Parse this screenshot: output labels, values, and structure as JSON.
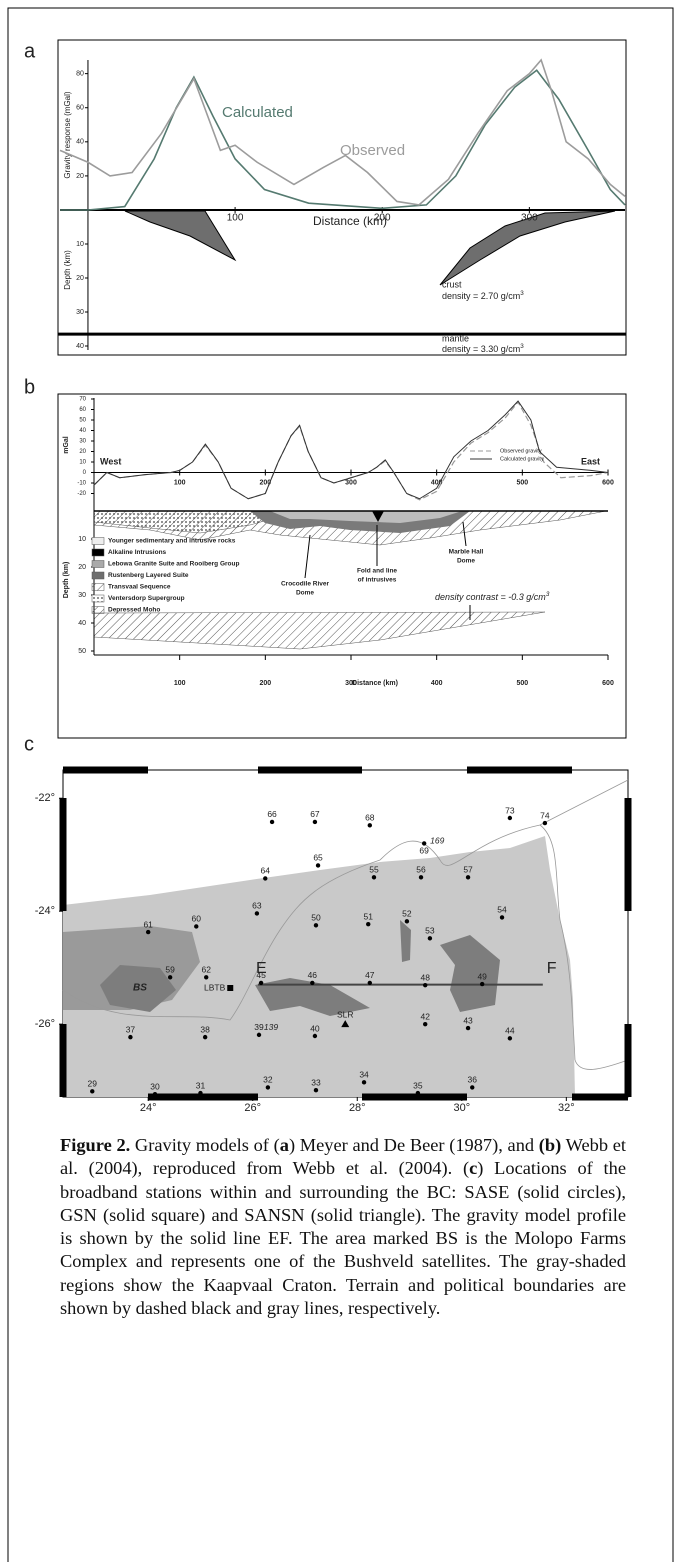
{
  "panel_a": {
    "label": "a",
    "y_label": "Gravity response (mGal)",
    "depth_label": "Depth (km)",
    "x_label": "Distance (km)",
    "xlim": [
      -19,
      365
    ],
    "ylim": [
      0,
      88
    ],
    "depth_lim": [
      0,
      40
    ],
    "xticks": [
      100,
      200,
      300
    ],
    "yticks": [
      20,
      40,
      60,
      80
    ],
    "depth_ticks": [
      10,
      20,
      30,
      40
    ],
    "series": [
      {
        "name": "Calculated",
        "color": "#557a70",
        "x": [
          -19,
          0,
          25,
          45,
          60,
          72,
          85,
          100,
          120,
          150,
          200,
          230,
          250,
          270,
          290,
          305,
          320,
          340,
          355,
          365
        ],
        "values": [
          0,
          0,
          2,
          30,
          60,
          78,
          55,
          30,
          12,
          4,
          1,
          3,
          20,
          50,
          72,
          82,
          65,
          35,
          12,
          3
        ]
      },
      {
        "name": "Observed",
        "color": "#9c9c9c",
        "x": [
          -19,
          0,
          15,
          30,
          50,
          72,
          90,
          100,
          115,
          140,
          160,
          175,
          190,
          210,
          225,
          245,
          265,
          285,
          300,
          308,
          315,
          325,
          340,
          355,
          365
        ],
        "values": [
          35,
          28,
          20,
          22,
          45,
          77,
          35,
          38,
          28,
          15,
          25,
          32,
          22,
          5,
          3,
          18,
          45,
          70,
          80,
          88,
          70,
          40,
          30,
          15,
          8
        ]
      }
    ],
    "moho_depth": 36.5,
    "crust_label": "crust",
    "crust_density": {
      "text": "density = 2.70 g/cm",
      "sup": "3"
    },
    "mantle_label": "mantle",
    "mantle_density": {
      "text": "density = 3.30 g/cm",
      "sup": "3"
    }
  },
  "panel_b": {
    "label": "b",
    "y_label": "mGal",
    "depth_label": "Depth (km)",
    "x_label": "Distance (km)",
    "west": "West",
    "east": "East",
    "xlim": [
      0,
      600
    ],
    "ylim": [
      -30,
      70
    ],
    "depth_lim": [
      0,
      50
    ],
    "xticks": [
      100,
      200,
      300,
      400,
      500,
      600
    ],
    "yticks": [
      -20,
      -10,
      0,
      10,
      20,
      30,
      40,
      50,
      60,
      70
    ],
    "depth_ticks": [
      10,
      20,
      30,
      40,
      50
    ],
    "series": [
      {
        "name": "Observed gravity",
        "color": "#999999",
        "dashed": true,
        "x": [
          0,
          15,
          30,
          60,
          90,
          100,
          115,
          130,
          145,
          160,
          180,
          200,
          215,
          230,
          240,
          250,
          265,
          280,
          300,
          320,
          330,
          340,
          350,
          365,
          380,
          400,
          420,
          440,
          460,
          480,
          495,
          510,
          525,
          545,
          580,
          600
        ],
        "values": [
          -12,
          0,
          -5,
          -2,
          0,
          2,
          10,
          26,
          10,
          -15,
          -25,
          -20,
          10,
          35,
          44,
          20,
          -5,
          -10,
          -5,
          0,
          5,
          11,
          0,
          -20,
          -26,
          -18,
          10,
          28,
          38,
          52,
          67,
          45,
          10,
          -5,
          -3,
          0
        ]
      },
      {
        "name": "Calculated gravity",
        "color": "#333333",
        "dashed": false,
        "x": [
          0,
          15,
          30,
          60,
          90,
          100,
          115,
          130,
          145,
          160,
          180,
          200,
          215,
          230,
          240,
          250,
          265,
          280,
          300,
          320,
          330,
          340,
          350,
          365,
          380,
          400,
          420,
          440,
          460,
          480,
          495,
          510,
          520,
          540,
          580,
          600
        ],
        "values": [
          -12,
          0,
          -5,
          -2,
          0,
          2,
          10,
          27,
          10,
          -15,
          -25,
          -20,
          10,
          35,
          45,
          20,
          -5,
          -10,
          -5,
          0,
          5,
          12,
          0,
          -20,
          -25,
          -15,
          15,
          30,
          40,
          55,
          68,
          50,
          20,
          5,
          2,
          0
        ]
      }
    ],
    "units": [
      "Younger sedimentary and intrusive rocks",
      "Alkaline Intrusions",
      "Lebowa Granite Suite and Rooiberg Group",
      "Rustenberg Layered Suite",
      "Transvaal Sequence",
      "Ventersdorp Supergroup",
      "Depressed Moho"
    ],
    "crocodile": [
      "Crocodile River",
      "Dome"
    ],
    "fold": [
      "Fold and line",
      "of intrusives"
    ],
    "marble": [
      "Marble Hall",
      "Dome"
    ],
    "density_contrast": {
      "text": "density contrast = -0.3 g/cm",
      "sup": "3"
    }
  },
  "panel_c": {
    "label": "c",
    "lonlim": [
      22.37,
      33.18
    ],
    "latlim": [
      -27.29,
      -21.5
    ],
    "lonticks": [
      {
        "value": 24,
        "label": "24°"
      },
      {
        "value": 26,
        "label": "26°"
      },
      {
        "value": 28,
        "label": "28°"
      },
      {
        "value": 30,
        "label": "30°"
      },
      {
        "value": 32,
        "label": "32°"
      }
    ],
    "latticks": [
      {
        "value": -22,
        "label": "-22°"
      },
      {
        "value": -24,
        "label": "-24°"
      },
      {
        "value": -26,
        "label": "-26°"
      }
    ],
    "bs_label": "BS",
    "profile": {
      "labels": [
        "E",
        "F"
      ],
      "lon": [
        26.1,
        31.55
      ],
      "lat": -25.3
    },
    "stations": [
      {
        "label": "66",
        "lon": 26.37,
        "lat": -22.42,
        "marker": "circle"
      },
      {
        "label": "67",
        "lon": 27.19,
        "lat": -22.42,
        "marker": "circle"
      },
      {
        "label": "68",
        "lon": 28.24,
        "lat": -22.48,
        "marker": "circle"
      },
      {
        "label": "73",
        "lon": 30.92,
        "lat": -22.35,
        "marker": "circle"
      },
      {
        "label": "74",
        "lon": 31.59,
        "lat": -22.44,
        "marker": "circle"
      },
      {
        "label": "69",
        "alt_label": "169",
        "lon": 29.28,
        "lat": -22.8,
        "marker": "circle"
      },
      {
        "label": "65",
        "lon": 27.25,
        "lat": -23.19,
        "marker": "circle"
      },
      {
        "label": "64",
        "lon": 26.24,
        "lat": -23.42,
        "marker": "circle"
      },
      {
        "label": "55",
        "lon": 28.32,
        "lat": -23.4,
        "marker": "circle"
      },
      {
        "label": "56",
        "lon": 29.22,
        "lat": -23.4,
        "marker": "circle"
      },
      {
        "label": "57",
        "lon": 30.12,
        "lat": -23.4,
        "marker": "circle"
      },
      {
        "label": "63",
        "lon": 26.08,
        "lat": -24.04,
        "marker": "circle"
      },
      {
        "label": "60",
        "lon": 24.92,
        "lat": -24.27,
        "marker": "circle"
      },
      {
        "label": "61",
        "lon": 24.0,
        "lat": -24.37,
        "marker": "circle"
      },
      {
        "label": "50",
        "lon": 27.21,
        "lat": -24.25,
        "marker": "circle"
      },
      {
        "label": "51",
        "lon": 28.21,
        "lat": -24.23,
        "marker": "circle"
      },
      {
        "label": "52",
        "lon": 28.95,
        "lat": -24.18,
        "marker": "circle"
      },
      {
        "label": "53",
        "lon": 29.39,
        "lat": -24.48,
        "marker": "circle"
      },
      {
        "label": "54",
        "lon": 30.77,
        "lat": -24.11,
        "marker": "circle"
      },
      {
        "label": "59",
        "lon": 24.42,
        "lat": -25.17,
        "marker": "circle"
      },
      {
        "label": "62",
        "lon": 25.11,
        "lat": -25.17,
        "marker": "circle"
      },
      {
        "label": "LBTB",
        "lon": 25.57,
        "lat": -25.36,
        "marker": "square"
      },
      {
        "label": "45",
        "lon": 26.16,
        "lat": -25.27,
        "marker": "circle"
      },
      {
        "label": "46",
        "lon": 27.14,
        "lat": -25.27,
        "marker": "circle"
      },
      {
        "label": "47",
        "lon": 28.24,
        "lat": -25.27,
        "marker": "circle"
      },
      {
        "label": "48",
        "lon": 29.3,
        "lat": -25.31,
        "marker": "circle"
      },
      {
        "label": "49",
        "lon": 30.39,
        "lat": -25.29,
        "marker": "circle"
      },
      {
        "label": "37",
        "lon": 23.66,
        "lat": -26.23,
        "marker": "circle"
      },
      {
        "label": "38",
        "lon": 25.09,
        "lat": -26.23,
        "marker": "circle"
      },
      {
        "label": "39",
        "alt_label": "139",
        "lon": 26.12,
        "lat": -26.19,
        "marker": "circle"
      },
      {
        "label": "40",
        "lon": 27.19,
        "lat": -26.21,
        "marker": "circle"
      },
      {
        "label": "SLR",
        "lon": 27.77,
        "lat": -26.0,
        "marker": "triangle"
      },
      {
        "label": "42",
        "lon": 29.3,
        "lat": -26.0,
        "marker": "circle"
      },
      {
        "label": "43",
        "lon": 30.12,
        "lat": -26.07,
        "marker": "circle"
      },
      {
        "label": "44",
        "lon": 30.92,
        "lat": -26.25,
        "marker": "circle"
      },
      {
        "label": "29",
        "lon": 22.93,
        "lat": -27.19,
        "marker": "circle"
      },
      {
        "label": "30",
        "lon": 24.13,
        "lat": -27.24,
        "marker": "circle"
      },
      {
        "label": "31",
        "lon": 25.0,
        "lat": -27.22,
        "marker": "circle"
      },
      {
        "label": "32",
        "lon": 26.29,
        "lat": -27.12,
        "marker": "circle"
      },
      {
        "label": "33",
        "lon": 27.21,
        "lat": -27.17,
        "marker": "circle"
      },
      {
        "label": "34",
        "lon": 28.13,
        "lat": -27.03,
        "marker": "circle"
      },
      {
        "label": "35",
        "lon": 29.16,
        "lat": -27.22,
        "marker": "circle"
      },
      {
        "label": "36",
        "lon": 30.2,
        "lat": -27.12,
        "marker": "circle"
      }
    ]
  },
  "caption": [
    {
      "text": "Figure 2.",
      "bold": true
    },
    {
      "text": " Gravity models of (",
      "bold": false
    },
    {
      "text": "a",
      "bold": true
    },
    {
      "text": ") Meyer and De Beer (1987), and ",
      "bold": false
    },
    {
      "text": "(b)",
      "bold": true
    },
    {
      "text": " Webb et al. (2004), reproduced from Webb et al. (2004). (",
      "bold": false
    },
    {
      "text": "c",
      "bold": true
    },
    {
      "text": ") Locations of the broadband stations within and surrounding the BC: SASE (solid circles), GSN (solid square) and SANSN (solid triangle). The gravity model profile is shown by the solid line EF. The area marked BS is the Molopo Farms Complex and represents one of the Bushveld satellites. The gray-shaded regions show the Kaapvaal Craton. Terrain and political boundaries are shown by dashed black and gray lines, respectively.",
      "bold": false
    }
  ]
}
